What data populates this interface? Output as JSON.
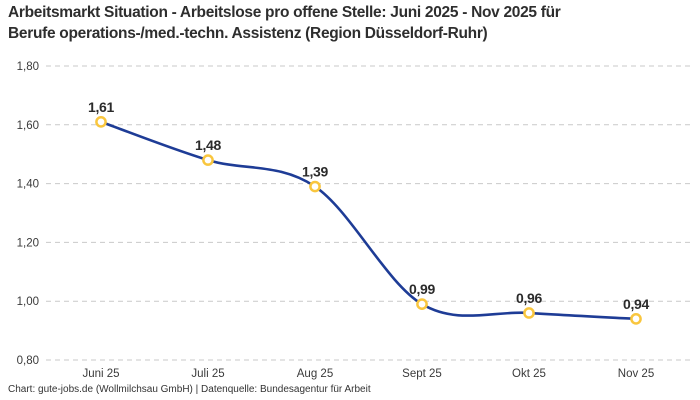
{
  "page": {
    "title_line1": "Arbeitsmarkt Situation - Arbeitslose pro offene Stelle: Juni 2025 - Nov 2025 für",
    "title_line2": "Berufe operations-/med.-techn. Assistenz (Region Düsseldorf-Ruhr)",
    "footer": "Chart: gute-jobs.de (Wollmilchsau GmbH) | Datenquelle: Bundesagentur für Arbeit"
  },
  "chart_data": {
    "type": "line",
    "title": "Arbeitsmarkt Situation - Arbeitslose pro offene Stelle: Juni 2025 - Nov 2025 für Berufe operations-/med.-techn. Assistenz (Region Düsseldorf-Ruhr)",
    "categories": [
      "Juni 25",
      "Juli 25",
      "Aug 25",
      "Sept 25",
      "Okt 25",
      "Nov 25"
    ],
    "values": [
      1.61,
      1.48,
      1.39,
      0.99,
      0.96,
      0.94
    ],
    "point_labels": [
      "1,61",
      "1,48",
      "1,39",
      "0,99",
      "0,96",
      "0,94"
    ],
    "y_ticks": [
      {
        "value": 1.8,
        "label": "1,80"
      },
      {
        "value": 1.6,
        "label": "1,60"
      },
      {
        "value": 1.4,
        "label": "1,40"
      },
      {
        "value": 1.2,
        "label": "1,20"
      },
      {
        "value": 1.0,
        "label": "1,00"
      },
      {
        "value": 0.8,
        "label": "0,80"
      }
    ],
    "ylim": [
      0.8,
      1.8
    ],
    "xlabel": "",
    "ylabel": "",
    "grid": "horizontal-dashed",
    "legend": "none",
    "line_style": "smooth",
    "colors": {
      "line": "#1e3c96",
      "marker_ring": "#f9c63e",
      "marker_fill": "#ffffff",
      "gridline": "#c9c9c9",
      "tick_text": "#3a3a3a",
      "label_text": "#2b2b2b"
    }
  }
}
